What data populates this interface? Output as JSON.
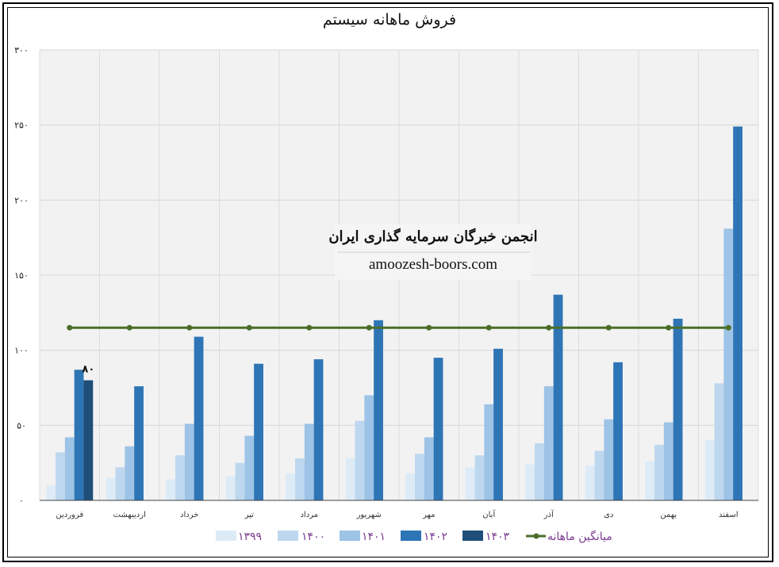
{
  "chart_data": {
    "type": "bar",
    "title": "فروش ماهانه سیستم",
    "categories": [
      "فروردین",
      "اردیبهشت",
      "خرداد",
      "تیر",
      "مرداد",
      "شهریور",
      "مهر",
      "آبان",
      "آذر",
      "دی",
      "بهمن",
      "اسفند"
    ],
    "series": [
      {
        "name": "۱۳۹۹",
        "color": "#ddebf7",
        "values": [
          10,
          15,
          14,
          16,
          18,
          28,
          18,
          22,
          24,
          23,
          26,
          40
        ]
      },
      {
        "name": "۱۴۰۰",
        "color": "#bdd7ee",
        "values": [
          32,
          22,
          30,
          25,
          28,
          53,
          31,
          30,
          38,
          33,
          37,
          78
        ]
      },
      {
        "name": "۱۴۰۱",
        "color": "#9dc3e6",
        "values": [
          42,
          36,
          51,
          43,
          51,
          70,
          42,
          64,
          76,
          54,
          52,
          181
        ]
      },
      {
        "name": "۱۴۰۲",
        "color": "#2e75b6",
        "values": [
          87,
          76,
          109,
          91,
          94,
          120,
          95,
          101,
          137,
          92,
          121,
          249
        ]
      },
      {
        "name": "۱۴۰۳",
        "color": "#1f4e79",
        "values": [
          80,
          null,
          null,
          null,
          null,
          null,
          null,
          null,
          null,
          null,
          null,
          null
        ]
      }
    ],
    "average": {
      "name": "میانگین ماهانه",
      "value": 115,
      "color": "#4a6e2a"
    },
    "data_labels": [
      {
        "series": "۱۴۰۳",
        "category": "فروردین",
        "text": "۸۰"
      }
    ],
    "yticks": [
      "۰",
      "۵۰",
      "۱۰۰",
      "۱۵۰",
      "۲۰۰",
      "۲۵۰",
      "۳۰۰"
    ],
    "ylim": [
      0,
      300
    ],
    "grid": true,
    "legend_position": "bottom"
  },
  "watermark": {
    "line1": "انجمن خبرگان سرمایه گذاری ایران",
    "line2": "amoozesh-boors.com"
  }
}
